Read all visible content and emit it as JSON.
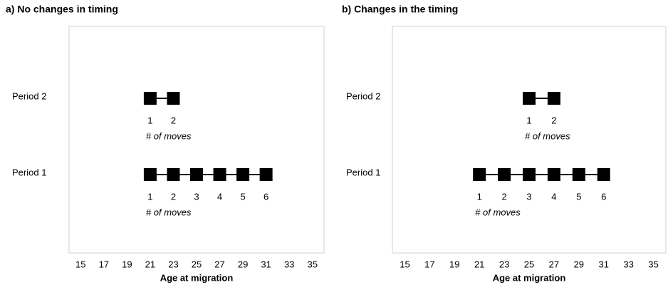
{
  "chart_data": [
    {
      "type": "scatter",
      "title": "a) No changes in timing",
      "xlabel": "Age at migration",
      "xlim": [
        14,
        36
      ],
      "xticks": [
        15,
        17,
        19,
        21,
        23,
        25,
        27,
        29,
        31,
        33,
        35
      ],
      "categories": [
        "Period 1",
        "Period 2"
      ],
      "series": [
        {
          "name": "Period 1",
          "color": "#000000",
          "x": [
            21,
            23,
            25,
            27,
            29,
            31
          ],
          "moves": [
            1,
            2,
            3,
            4,
            5,
            6
          ],
          "note": "# of moves"
        },
        {
          "name": "Period 2",
          "color": "#000000",
          "x": [
            21,
            23
          ],
          "moves": [
            1,
            2
          ],
          "note": "# of moves"
        }
      ]
    },
    {
      "type": "scatter",
      "title": "b) Changes in the timing",
      "xlabel": "Age at migration",
      "xlim": [
        14,
        36
      ],
      "xticks": [
        15,
        17,
        19,
        21,
        23,
        25,
        27,
        29,
        31,
        33,
        35
      ],
      "categories": [
        "Period 1",
        "Period 2"
      ],
      "series": [
        {
          "name": "Period 1",
          "color": "#000000",
          "x": [
            21,
            23,
            25,
            27,
            29,
            31
          ],
          "moves": [
            1,
            2,
            3,
            4,
            5,
            6
          ],
          "note": "# of moves"
        },
        {
          "name": "Period 2",
          "color": "#000000",
          "x": [
            25,
            27
          ],
          "moves": [
            1,
            2
          ],
          "note": "# of moves"
        }
      ]
    }
  ]
}
